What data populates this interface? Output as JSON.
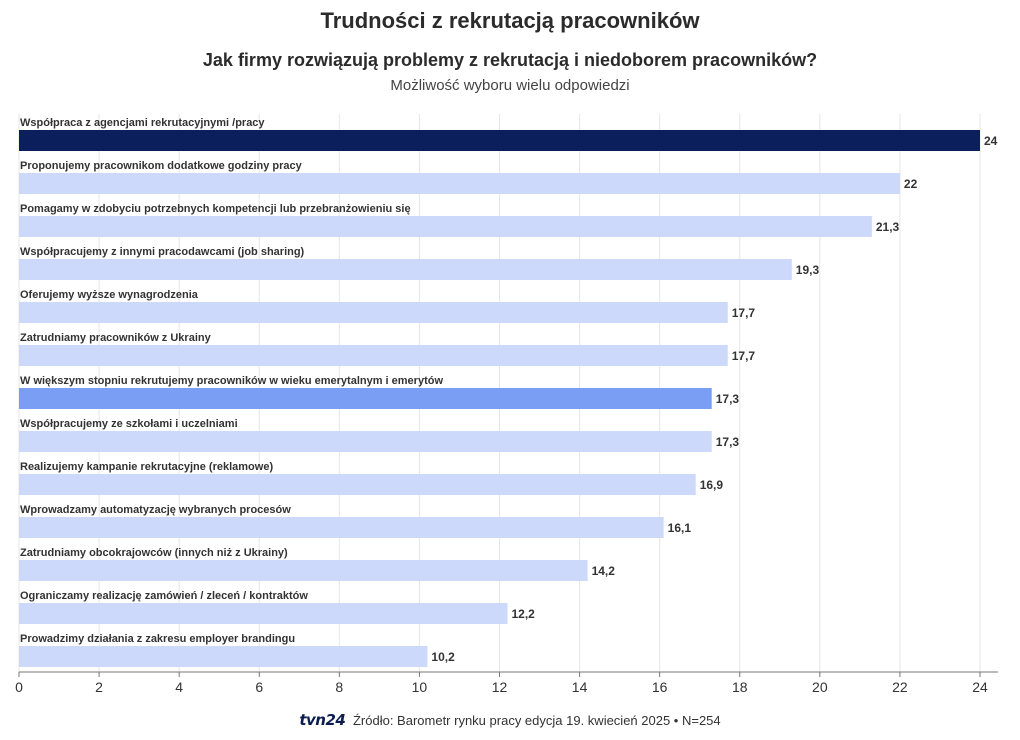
{
  "header": {
    "title": "Trudności z rekrutacją pracowników",
    "subtitle": "Jak firmy rozwiązują problemy z rekrutacją i niedoborem pracowników?",
    "note": "Możliwość wyboru wielu odpowiedzi"
  },
  "footer": {
    "logo": "tvn24",
    "source": "Źródło: Barometr rynku pracy edycja 19. kwiecień 2025 • N=254"
  },
  "colors": {
    "highlight_dark": "#0a1f5c",
    "highlight_mid": "#7b9ef5",
    "bar_default": "#ccd9fb",
    "grid": "#e6e6e6",
    "axis": "#777777"
  },
  "chart_data": {
    "type": "bar",
    "orientation": "horizontal",
    "categories": [
      "Współpraca z agencjami rekrutacyjnymi /pracy",
      "Proponujemy pracownikom dodatkowe godziny pracy",
      "Pomagamy w zdobyciu potrzebnych kompetencji lub przebranżowieniu się",
      "Współpracujemy z innymi pracodawcami (job sharing)",
      "Oferujemy wyższe wynagrodzenia",
      "Zatrudniamy pracowników z Ukrainy",
      "W większym stopniu rekrutujemy pracowników w wieku emerytalnym i emerytów",
      "Współpracujemy ze szkołami i uczelniami",
      "Realizujemy kampanie rekrutacyjne (reklamowe)",
      "Wprowadzamy automatyzację wybranych procesów",
      "Zatrudniamy obcokrajowców (innych niż z Ukrainy)",
      "Ograniczamy realizację zamówień / zleceń / kontraktów",
      "Prowadzimy działania z zakresu employer brandingu"
    ],
    "values": [
      24,
      22,
      21.3,
      19.3,
      17.7,
      17.7,
      17.3,
      17.3,
      16.9,
      16.1,
      14.2,
      12.2,
      10.2
    ],
    "value_labels": [
      "24",
      "22",
      "21,3",
      "19,3",
      "17,7",
      "17,7",
      "17,3",
      "17,3",
      "16,9",
      "16,1",
      "14,2",
      "12,2",
      "10,2"
    ],
    "highlight": [
      "dark",
      "default",
      "default",
      "default",
      "default",
      "default",
      "mid",
      "default",
      "default",
      "default",
      "default",
      "default",
      "default"
    ],
    "xlim": [
      0,
      24
    ],
    "xticks": [
      0,
      2,
      4,
      6,
      8,
      10,
      12,
      14,
      16,
      18,
      20,
      22,
      24
    ],
    "grid": true,
    "legend": "none"
  }
}
